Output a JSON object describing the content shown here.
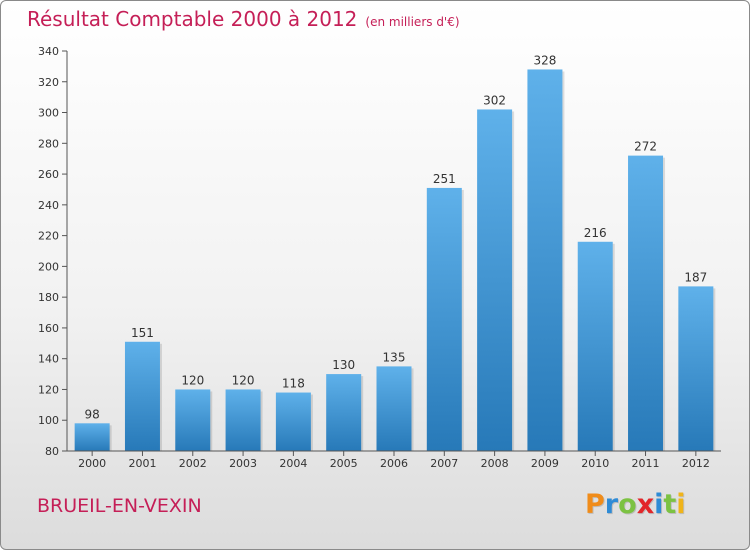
{
  "chart_data": {
    "type": "bar",
    "title": "Résultat Comptable 2000 à 2012",
    "unit": "(en milliers d'€)",
    "categories": [
      "2000",
      "2001",
      "2002",
      "2003",
      "2004",
      "2005",
      "2006",
      "2007",
      "2008",
      "2009",
      "2010",
      "2011",
      "2012"
    ],
    "values": [
      98,
      151,
      120,
      120,
      118,
      130,
      135,
      251,
      302,
      328,
      216,
      272,
      187
    ],
    "ylim": [
      80,
      340
    ],
    "yticks": [
      80,
      100,
      120,
      140,
      160,
      180,
      200,
      220,
      240,
      260,
      280,
      300,
      320,
      340
    ],
    "xlabel": "",
    "ylabel": "",
    "grid": false,
    "bar_color_light": "#5fb1ea",
    "bar_color_dark": "#2779b8"
  },
  "commune": "BRUEIL-EN-VEXIN",
  "logo": {
    "letters": [
      "P",
      "r",
      "o",
      "x",
      "i",
      "t",
      "i"
    ],
    "colors": [
      "#f08c1a",
      "#2e8bd6",
      "#7cc242",
      "#e2262a",
      "#2e8bd6",
      "#7cc242",
      "#f0b41a"
    ]
  },
  "colors": {
    "accent": "#c51f57",
    "axis": "#555555"
  }
}
